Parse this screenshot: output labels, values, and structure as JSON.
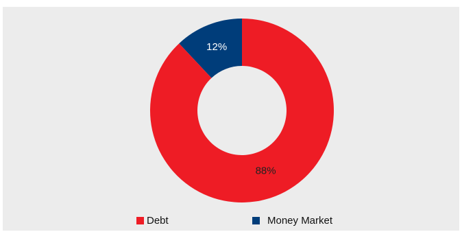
{
  "chart_data": {
    "type": "pie",
    "variant": "donut",
    "title": "",
    "slices": [
      {
        "label": "Money Market",
        "value": 12,
        "display": "12%",
        "color": "#003d7a",
        "label_color": "#ffffff"
      },
      {
        "label": "Debt",
        "value": 88,
        "display": "88%",
        "color": "#ee1c25",
        "label_color": "#222222"
      }
    ],
    "legend": {
      "placement": "bottom",
      "entries": [
        {
          "label": "Debt",
          "color": "#ee1c25"
        },
        {
          "label": "Money Market",
          "color": "#003d7a"
        }
      ]
    }
  },
  "colors": {
    "background": "#ececec"
  }
}
